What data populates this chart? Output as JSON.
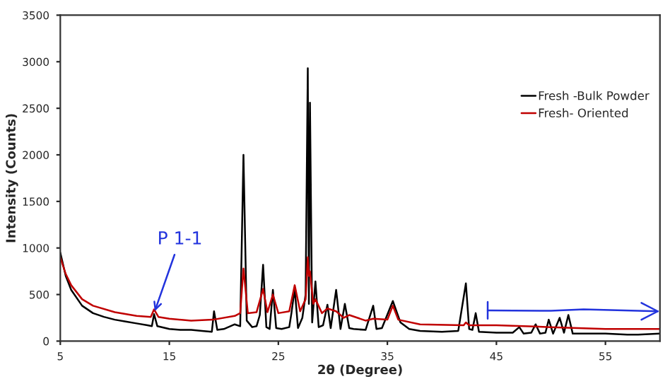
{
  "chart_data": {
    "type": "line",
    "xlabel": "2θ (Degree)",
    "ylabel": "Intensity (Counts)",
    "xlim": [
      5,
      60
    ],
    "ylim": [
      0,
      3500
    ],
    "xticks": [
      5,
      15,
      25,
      35,
      45,
      55
    ],
    "yticks": [
      0,
      500,
      1000,
      1500,
      2000,
      2500,
      3000,
      3500
    ],
    "grid": false,
    "legend": "top right",
    "marker": "none",
    "line_style": "solid",
    "annotations": [
      {
        "text": "P 1-1",
        "x": 13.6,
        "y": 300
      }
    ],
    "series": [
      {
        "name": "Fresh -Bulk Powder",
        "color": "#000000",
        "x": [
          5,
          5.5,
          6,
          7,
          8,
          9,
          10,
          11,
          12,
          13,
          13.4,
          13.6,
          13.9,
          15,
          16,
          17,
          18,
          18.9,
          19.1,
          19.4,
          20,
          21,
          21.5,
          21.8,
          22.1,
          22.6,
          23,
          23.3,
          23.6,
          23.9,
          24.2,
          24.5,
          24.8,
          25.3,
          26,
          26.2,
          26.5,
          26.8,
          27.2,
          27.5,
          27.7,
          27.8,
          27.9,
          28.1,
          28.4,
          28.7,
          29.1,
          29.5,
          29.8,
          30.3,
          30.7,
          31.1,
          31.5,
          31.9,
          33,
          33.7,
          34,
          34.5,
          35.5,
          36.2,
          37,
          38,
          40,
          41.5,
          42.2,
          42.5,
          42.8,
          43.1,
          43.4,
          45,
          46.5,
          47.1,
          47.5,
          48.2,
          48.6,
          49,
          49.5,
          49.8,
          50.2,
          50.8,
          51.2,
          51.6,
          52,
          53,
          55,
          57,
          58,
          60
        ],
        "values": [
          950,
          700,
          550,
          380,
          300,
          260,
          230,
          210,
          190,
          170,
          160,
          290,
          160,
          130,
          120,
          120,
          110,
          100,
          320,
          120,
          130,
          180,
          160,
          2000,
          220,
          150,
          160,
          280,
          820,
          150,
          130,
          550,
          140,
          130,
          150,
          300,
          560,
          140,
          250,
          500,
          2930,
          400,
          2560,
          200,
          640,
          150,
          170,
          390,
          140,
          550,
          130,
          400,
          140,
          130,
          120,
          380,
          130,
          140,
          430,
          200,
          130,
          110,
          100,
          110,
          620,
          130,
          120,
          300,
          100,
          90,
          90,
          150,
          80,
          90,
          180,
          80,
          90,
          230,
          80,
          250,
          90,
          280,
          80,
          80,
          80,
          70,
          70,
          80
        ]
      },
      {
        "name": "Fresh- Oriented",
        "color": "#c00000",
        "x": [
          5,
          5.5,
          6,
          7,
          8,
          10,
          12,
          13.3,
          13.6,
          14,
          15,
          17,
          19,
          21,
          21.5,
          21.8,
          22.2,
          23,
          23.6,
          24,
          24.5,
          25,
          26,
          26.5,
          27,
          27.5,
          27.7,
          27.8,
          27.9,
          28.2,
          28.4,
          29,
          29.5,
          30.3,
          31,
          31.5,
          33,
          33.7,
          35,
          35.5,
          36,
          38,
          42,
          42.2,
          42.5,
          45,
          50,
          55,
          60
        ],
        "values": [
          900,
          720,
          600,
          450,
          380,
          310,
          270,
          260,
          340,
          260,
          240,
          220,
          230,
          270,
          300,
          780,
          300,
          310,
          560,
          310,
          500,
          300,
          320,
          600,
          320,
          450,
          900,
          700,
          750,
          400,
          450,
          300,
          350,
          320,
          250,
          280,
          220,
          240,
          230,
          380,
          230,
          180,
          170,
          200,
          170,
          170,
          150,
          130,
          130
        ]
      }
    ]
  }
}
